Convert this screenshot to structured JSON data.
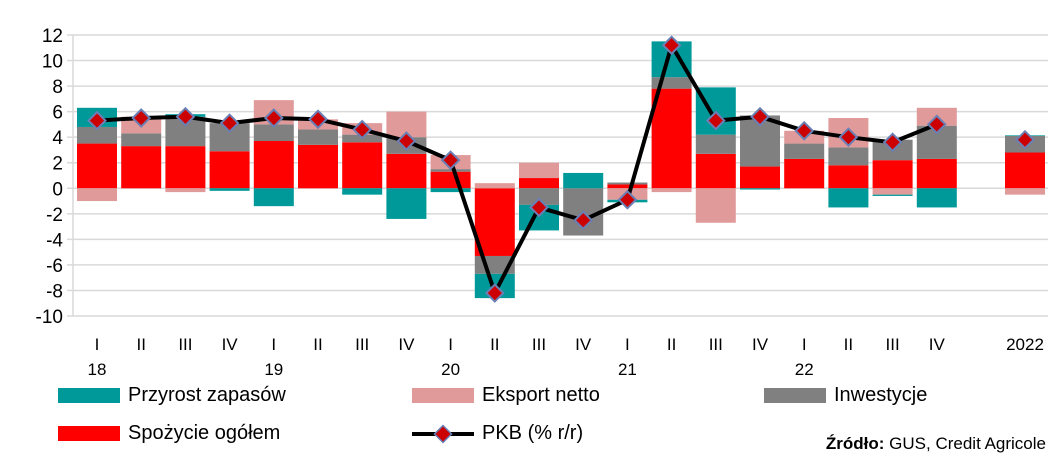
{
  "chart_data": {
    "type": "bar",
    "stacked": true,
    "title": "",
    "ylim": [
      -10,
      12
    ],
    "yticks": [
      12,
      10,
      8,
      6,
      4,
      2,
      0,
      -2,
      -4,
      -6,
      -8,
      -10
    ],
    "grid": true,
    "categories": [
      "I",
      "II",
      "III",
      "IV",
      "I",
      "II",
      "III",
      "IV",
      "I",
      "II",
      "III",
      "IV",
      "I",
      "II",
      "III",
      "IV",
      "I",
      "II",
      "III",
      "IV",
      "2022"
    ],
    "year_labels": [
      {
        "label": "18",
        "index": 0
      },
      {
        "label": "19",
        "index": 4
      },
      {
        "label": "20",
        "index": 8
      },
      {
        "label": "21",
        "index": 12
      },
      {
        "label": "22",
        "index": 16
      }
    ],
    "series": [
      {
        "name": "Spożycie ogółem",
        "color": "#ff0000",
        "values": [
          3.5,
          3.3,
          3.3,
          2.9,
          3.7,
          3.4,
          3.6,
          2.7,
          1.3,
          -5.3,
          0.8,
          0,
          0.3,
          7.8,
          2.7,
          1.7,
          2.3,
          1.8,
          2.2,
          2.3,
          2.8
        ]
      },
      {
        "name": "Inwestycje",
        "color": "#808080",
        "values": [
          1.3,
          1.0,
          2.3,
          2.2,
          1.3,
          1.2,
          0.6,
          1.3,
          0.2,
          -1.4,
          -1.3,
          -3.7,
          0.15,
          0.9,
          1.5,
          4.0,
          1.2,
          1.4,
          1.6,
          2.6,
          1.3
        ]
      },
      {
        "name": "Eksport netto",
        "color": "#e09a9a",
        "values": [
          -1.0,
          1.3,
          -0.3,
          0,
          1.9,
          0.8,
          0.9,
          2.0,
          1.1,
          0.4,
          1.2,
          0,
          -0.9,
          -0.3,
          -2.7,
          0,
          1.0,
          2.3,
          -0.5,
          1.4,
          -0.5
        ]
      },
      {
        "name": "Przyrost zapasów",
        "color": "#009999",
        "values": [
          1.5,
          0,
          0.2,
          -0.2,
          -1.4,
          0,
          -0.5,
          -2.4,
          -0.3,
          -1.9,
          -2.0,
          1.2,
          -0.2,
          2.8,
          3.7,
          -0.1,
          0,
          -1.5,
          -0.1,
          -1.5,
          0.05
        ]
      }
    ],
    "line": {
      "name": "PKB (% r/r)",
      "color": "#000000",
      "marker_color": "#cc0000",
      "marker_edge": "#6a7fb5",
      "values": [
        5.3,
        5.5,
        5.6,
        5.1,
        5.5,
        5.4,
        4.6,
        3.7,
        2.2,
        -8.2,
        -1.5,
        -2.5,
        -0.9,
        11.2,
        5.3,
        5.6,
        4.5,
        4.0,
        3.6,
        5.0,
        3.8
      ]
    },
    "legend": [
      "Przyrost zapasów",
      "Eksport netto",
      "Inwestycje",
      "Spożycie ogółem",
      "PKB (% r/r)"
    ],
    "legend_position": "bottom"
  },
  "source": {
    "label": "Źródło:",
    "text": " GUS, Credit Agricole"
  }
}
